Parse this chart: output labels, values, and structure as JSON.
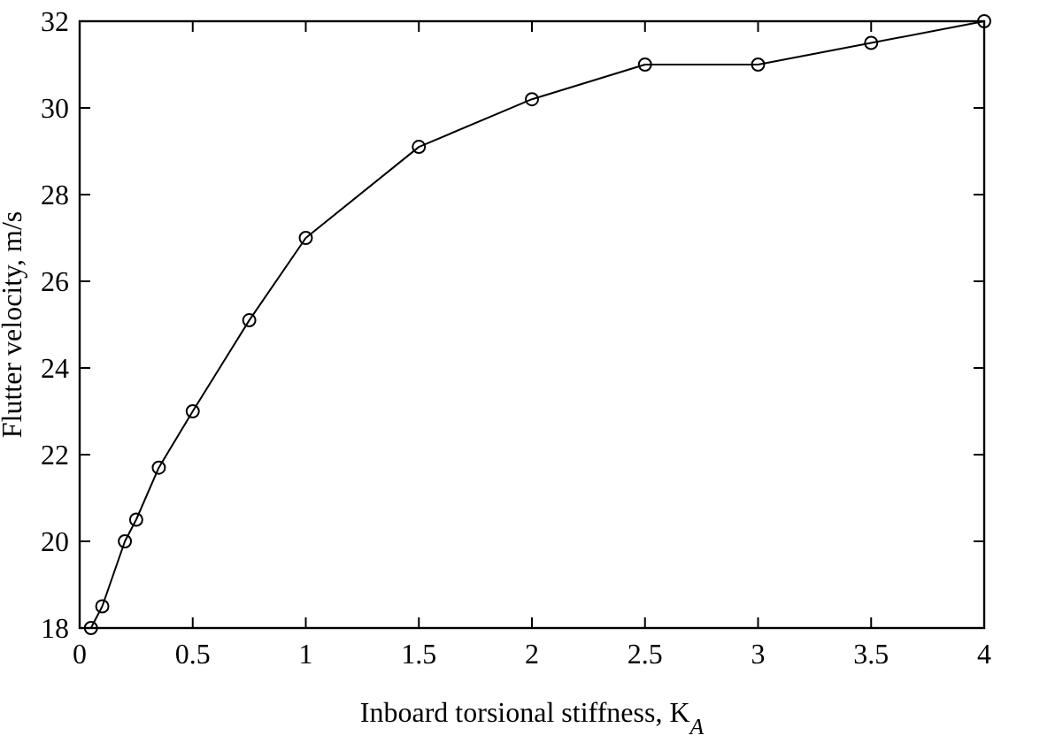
{
  "chart_data": {
    "type": "line",
    "xlabel": "Inboard torsional stiffness, K$_{A}$",
    "ylabel": "Flutter velocity, m/s",
    "x": [
      0.05,
      0.1,
      0.2,
      0.25,
      0.35,
      0.5,
      0.75,
      1,
      1.5,
      2,
      2.5,
      3,
      3.5,
      4
    ],
    "series": [
      {
        "color": "#000000",
        "values": [
          18,
          18.5,
          20,
          20.5,
          21.7,
          23,
          25.1,
          27,
          29.1,
          30.2,
          31,
          31,
          31.5,
          32
        ]
      }
    ],
    "xlim": [
      0,
      4
    ],
    "xticks": [
      0,
      0.5,
      1,
      1.5,
      2,
      2.5,
      3,
      3.5,
      4
    ],
    "ylim": [
      18,
      32
    ],
    "yticks": [
      18,
      20,
      22,
      24,
      26,
      28,
      30,
      32
    ],
    "marker": "circle",
    "line_style": "solid",
    "grid": false
  }
}
